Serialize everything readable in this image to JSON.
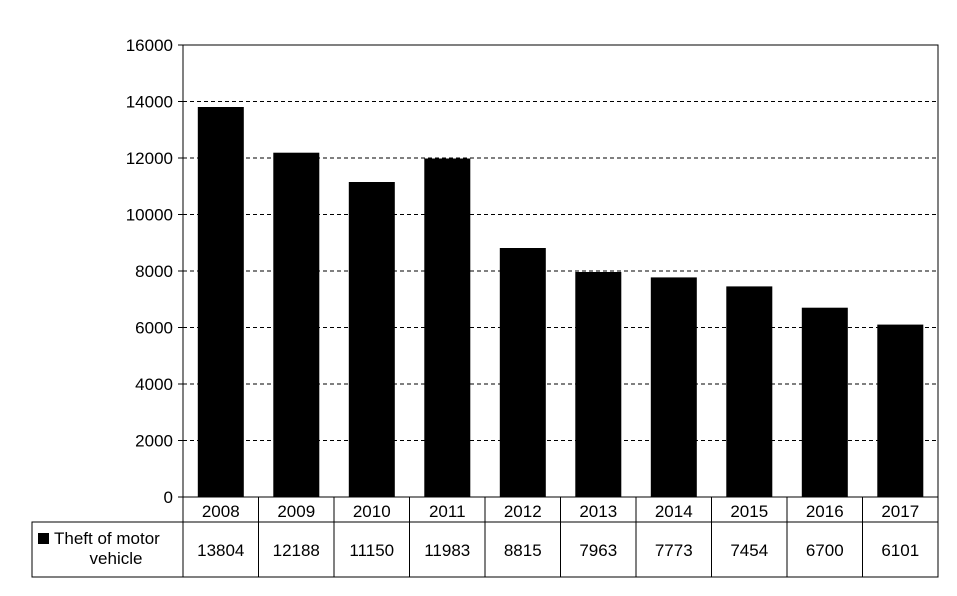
{
  "chart_data": {
    "type": "bar",
    "categories": [
      "2008",
      "2009",
      "2010",
      "2011",
      "2012",
      "2013",
      "2014",
      "2015",
      "2016",
      "2017"
    ],
    "series": [
      {
        "name": "Theft of motor vehicle",
        "name_lines": [
          "Theft of motor",
          "vehicle"
        ],
        "values": [
          13804,
          12188,
          11150,
          11983,
          8815,
          7963,
          7773,
          7454,
          6700,
          6101
        ],
        "value_labels": [
          "13804",
          "12188",
          "11150",
          "11983",
          "8815",
          "7963",
          "7773",
          "7454",
          "6700",
          "6101"
        ]
      }
    ],
    "ylim": [
      0,
      16000
    ],
    "yticks": [
      0,
      2000,
      4000,
      6000,
      8000,
      10000,
      12000,
      14000,
      16000
    ],
    "ytick_labels": [
      "0",
      "2000",
      "4000",
      "6000",
      "8000",
      "10000",
      "12000",
      "14000",
      "16000"
    ],
    "grid": "horizontal dashed",
    "legend": "data-table",
    "bar_color": "#000000",
    "title": "",
    "xlabel": "",
    "ylabel": ""
  }
}
